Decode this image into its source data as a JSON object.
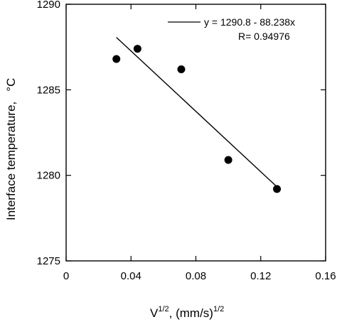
{
  "chart_data": {
    "type": "scatter",
    "xlabel_main": "V",
    "xlabel_sup": "1/2",
    "xlabel_rest": ",  (mm/s)",
    "xlabel_sup2": "1/2",
    "ylabel": "Interface temperature,",
    "yunit": "°C",
    "xlim": [
      0,
      0.16
    ],
    "ylim": [
      1275,
      1290
    ],
    "x_ticks": [
      "0",
      "0.04",
      "0.08",
      "0.12",
      "0.16"
    ],
    "x_tick_values": [
      0,
      0.04,
      0.08,
      0.12,
      0.16
    ],
    "y_ticks": [
      "1275",
      "1280",
      "1285",
      "1290"
    ],
    "y_tick_values": [
      1275,
      1280,
      1285,
      1290
    ],
    "grid": false,
    "legend_position": "top-right",
    "legend": {
      "equation": "y = 1290.8 - 88.238x",
      "r_value": "R= 0.94976"
    },
    "points": [
      {
        "x": 0.031,
        "y": 1286.8
      },
      {
        "x": 0.044,
        "y": 1287.4
      },
      {
        "x": 0.071,
        "y": 1286.2
      },
      {
        "x": 0.1,
        "y": 1280.9
      },
      {
        "x": 0.13,
        "y": 1279.2
      }
    ],
    "fit_line": {
      "intercept": 1290.8,
      "slope": -88.238,
      "x_range": [
        0.031,
        0.13
      ]
    }
  }
}
